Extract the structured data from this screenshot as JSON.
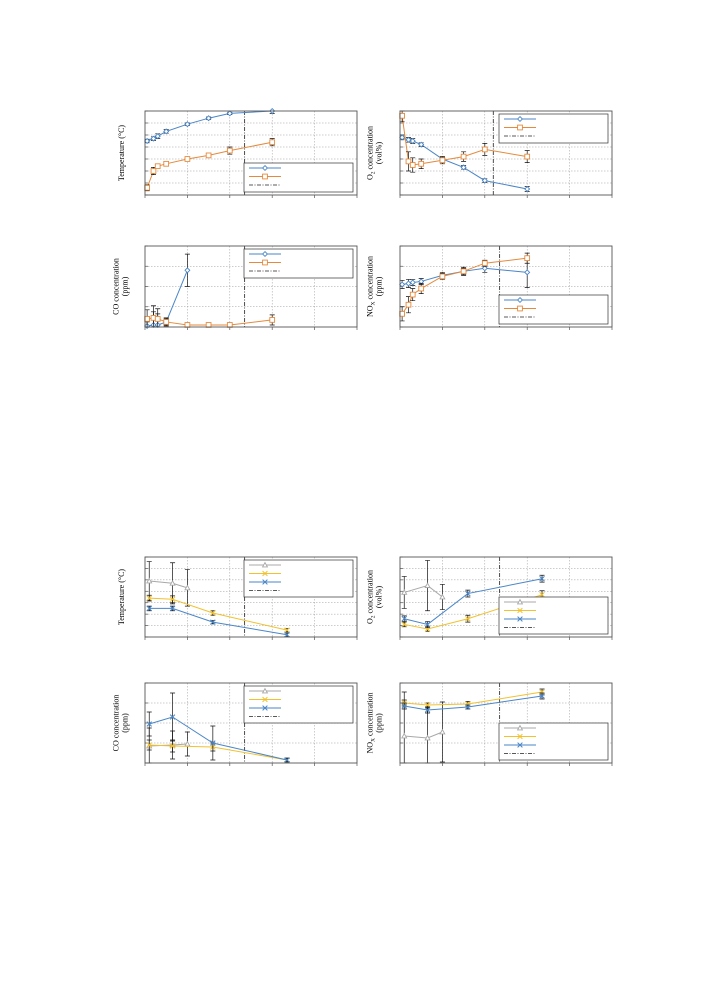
{
  "colors": {
    "blue": "#4a86c8",
    "orange": "#e58a3c",
    "gray": "#a8a8a8",
    "yellow": "#f2c12e",
    "frame": "#555555",
    "grid": "#9a9a9a",
    "errorbar": "#111111"
  },
  "chart_data": [
    {
      "id": "a1",
      "type": "line",
      "ylabel_lines": [
        {
          "text": "Temperature (°C)"
        }
      ],
      "xlim": [
        0,
        10
      ],
      "ylim": [
        0,
        7
      ],
      "xgrid": [
        2,
        4,
        6,
        8
      ],
      "ygrid": [
        1,
        2,
        3,
        4,
        5,
        6
      ],
      "vline": 4.7,
      "legend": "bottom-right",
      "legend_rows": 3,
      "series": [
        {
          "color": "blue",
          "marker": "diamond",
          "x": [
            0.1,
            0.4,
            0.6,
            1.0,
            2.0,
            3.0,
            4.0,
            6.0
          ],
          "y": [
            4.5,
            4.7,
            4.9,
            5.3,
            5.9,
            6.4,
            6.8,
            7.0
          ],
          "err": [
            0.15,
            0.15,
            0.2,
            0.15,
            0.1,
            0.1,
            0.1,
            0.2
          ]
        },
        {
          "color": "orange",
          "marker": "square",
          "x": [
            0.1,
            0.4,
            0.6,
            1.0,
            2.0,
            3.0,
            4.0,
            6.0
          ],
          "y": [
            0.6,
            2.0,
            2.4,
            2.6,
            3.0,
            3.3,
            3.7,
            4.4
          ],
          "err": [
            0.25,
            0.3,
            0.2,
            0.15,
            0.15,
            0.15,
            0.3,
            0.3
          ]
        }
      ]
    },
    {
      "id": "a2",
      "type": "line",
      "ylabel_lines": [
        {
          "text": "O",
          "sub": "2",
          "tail": " concentration"
        },
        {
          "text": "(vol%)"
        }
      ],
      "xlim": [
        0,
        10
      ],
      "ylim": [
        0,
        7
      ],
      "xgrid": [
        2,
        4,
        6,
        8
      ],
      "ygrid": [
        1,
        2,
        3,
        4,
        5,
        6
      ],
      "vline": 4.4,
      "legend": "top-right",
      "legend_rows": 3,
      "series": [
        {
          "color": "blue",
          "marker": "diamond",
          "x": [
            0.1,
            0.4,
            0.6,
            1.0,
            2.0,
            3.0,
            4.0,
            6.0
          ],
          "y": [
            4.8,
            4.6,
            4.5,
            4.2,
            3.0,
            2.3,
            1.2,
            0.5
          ],
          "err": [
            0.2,
            0.2,
            0.2,
            0.15,
            0.15,
            0.15,
            0.15,
            0.2
          ]
        },
        {
          "color": "orange",
          "marker": "square",
          "x": [
            0.1,
            0.4,
            0.6,
            1.0,
            2.0,
            3.0,
            4.0,
            6.0
          ],
          "y": [
            6.6,
            2.8,
            2.5,
            2.6,
            2.9,
            3.2,
            3.8,
            3.2
          ],
          "err": [
            0.5,
            0.8,
            0.6,
            0.4,
            0.3,
            0.4,
            0.5,
            0.5
          ]
        }
      ]
    },
    {
      "id": "a3",
      "type": "line",
      "ylabel_lines": [
        {
          "text": "CO concentration"
        },
        {
          "text": "(ppm)"
        }
      ],
      "xlim": [
        0,
        10
      ],
      "ylim": [
        0,
        8
      ],
      "xgrid": [
        2,
        4,
        6,
        8
      ],
      "ygrid": [
        2,
        4,
        6
      ],
      "vline": 4.7,
      "legend": "top-right",
      "legend_rows": 3,
      "series": [
        {
          "color": "blue",
          "marker": "diamond",
          "x": [
            0.1,
            0.4,
            0.6,
            1.0,
            2.0
          ],
          "y": [
            0.1,
            0.2,
            0.2,
            0.5,
            5.6
          ],
          "err": [
            0.4,
            1.3,
            1.1,
            0.3,
            1.6
          ]
        },
        {
          "color": "orange",
          "marker": "square",
          "x": [
            0.1,
            0.4,
            0.6,
            1.0,
            2.0,
            3.0,
            4.0,
            6.0
          ],
          "y": [
            0.8,
            0.9,
            0.8,
            0.5,
            0.2,
            0.2,
            0.2,
            0.7
          ],
          "err": [
            0.9,
            1.2,
            1.0,
            0.4,
            0.2,
            0.2,
            0.2,
            0.5
          ]
        }
      ]
    },
    {
      "id": "a4",
      "type": "line",
      "ylabel_lines": [
        {
          "text": "NO",
          "sub": "X",
          "tail": " concentration"
        },
        {
          "text": "(ppm)"
        }
      ],
      "xlim": [
        0,
        10
      ],
      "ylim": [
        0,
        8
      ],
      "xgrid": [
        2,
        4,
        6,
        8
      ],
      "ygrid": [
        2,
        4,
        6
      ],
      "vline": 4.7,
      "legend": "bottom-right",
      "legend_rows": 3,
      "series": [
        {
          "color": "blue",
          "marker": "diamond",
          "x": [
            0.1,
            0.4,
            0.6,
            1.0,
            2.0,
            3.0,
            4.0,
            6.0
          ],
          "y": [
            4.2,
            4.3,
            4.4,
            4.5,
            5.1,
            5.5,
            5.8,
            5.4
          ],
          "err": [
            0.4,
            0.4,
            0.3,
            0.3,
            0.3,
            0.4,
            0.4,
            1.5
          ]
        },
        {
          "color": "orange",
          "marker": "square",
          "x": [
            0.1,
            0.4,
            0.6,
            1.0,
            2.0,
            3.0,
            4.0,
            6.0
          ],
          "y": [
            1.3,
            2.2,
            3.2,
            3.8,
            5.0,
            5.5,
            6.3,
            6.8
          ],
          "err": [
            0.7,
            0.8,
            0.6,
            0.5,
            0.3,
            0.3,
            0.3,
            0.5
          ]
        }
      ]
    },
    {
      "id": "b1",
      "type": "line",
      "ylabel_lines": [
        {
          "text": "Temperature (°C)"
        }
      ],
      "xlim": [
        0,
        10
      ],
      "ylim": [
        0,
        7
      ],
      "xgrid": [
        2,
        4,
        6,
        8
      ],
      "ygrid": [
        1,
        2,
        3,
        4,
        5,
        6
      ],
      "vline": 4.7,
      "legend": "top-right",
      "legend_rows": 4,
      "series": [
        {
          "color": "gray",
          "marker": "triangle",
          "x": [
            0.2,
            1.3,
            2.0
          ],
          "y": [
            4.9,
            4.7,
            4.3
          ],
          "err": [
            1.7,
            1.8,
            1.6
          ]
        },
        {
          "color": "yellow",
          "marker": "x",
          "x": [
            0.2,
            1.3,
            3.2,
            6.7
          ],
          "y": [
            3.4,
            3.3,
            2.1,
            0.6
          ],
          "err": [
            0.25,
            0.3,
            0.2,
            0.15
          ]
        },
        {
          "color": "blue",
          "marker": "x",
          "x": [
            0.2,
            1.3,
            3.2,
            6.7
          ],
          "y": [
            2.5,
            2.5,
            1.3,
            0.2
          ],
          "err": [
            0.2,
            0.2,
            0.15,
            0.15
          ]
        }
      ]
    },
    {
      "id": "b2",
      "type": "line",
      "ylabel_lines": [
        {
          "text": "O",
          "sub": "2",
          "tail": " concentration"
        },
        {
          "text": "(vol%)"
        }
      ],
      "xlim": [
        0,
        10
      ],
      "ylim": [
        0,
        7
      ],
      "xgrid": [
        2,
        4,
        6,
        8
      ],
      "ygrid": [
        1,
        2,
        3,
        4,
        5,
        6
      ],
      "vline": 4.7,
      "legend": "bottom-right",
      "legend_rows": 4,
      "series": [
        {
          "color": "gray",
          "marker": "triangle",
          "x": [
            0.2,
            1.3,
            2.0
          ],
          "y": [
            3.9,
            4.5,
            3.5
          ],
          "err": [
            1.4,
            2.2,
            1.1
          ]
        },
        {
          "color": "yellow",
          "marker": "x",
          "x": [
            0.2,
            1.3,
            3.2,
            6.7
          ],
          "y": [
            1.1,
            0.7,
            1.6,
            3.7
          ],
          "err": [
            0.2,
            0.2,
            0.3,
            0.35
          ]
        },
        {
          "color": "blue",
          "marker": "x",
          "x": [
            0.2,
            1.3,
            3.2,
            6.7
          ],
          "y": [
            1.6,
            1.1,
            3.8,
            5.1
          ],
          "err": [
            0.25,
            0.25,
            0.3,
            0.3
          ]
        }
      ]
    },
    {
      "id": "b3",
      "type": "line",
      "ylabel_lines": [
        {
          "text": "CO concentration"
        },
        {
          "text": "(ppm)"
        }
      ],
      "xlim": [
        0,
        10
      ],
      "ylim": [
        0,
        8
      ],
      "xgrid": [
        2,
        4,
        6,
        8
      ],
      "ygrid": [
        2,
        4,
        6
      ],
      "vline": 4.7,
      "legend": "top-right",
      "legend_rows": 4,
      "series": [
        {
          "color": "gray",
          "marker": "triangle",
          "x": [
            0.2,
            1.3,
            2.0
          ],
          "y": [
            1.7,
            1.8,
            1.9
          ],
          "err": [
            1.8,
            1.4,
            1.2
          ]
        },
        {
          "color": "yellow",
          "marker": "x",
          "x": [
            0.2,
            1.3,
            3.2,
            6.7
          ],
          "y": [
            1.8,
            1.7,
            1.6,
            0.3
          ],
          "err": [
            0.5,
            0.6,
            0.4,
            0.15
          ]
        },
        {
          "color": "blue",
          "marker": "x",
          "x": [
            0.2,
            1.3,
            3.2,
            6.7
          ],
          "y": [
            3.9,
            4.6,
            2.0,
            0.3
          ],
          "err": [
            1.2,
            2.4,
            1.7,
            0.2
          ]
        }
      ]
    },
    {
      "id": "b4",
      "type": "line",
      "ylabel_lines": [
        {
          "text": "NO",
          "sub": "X",
          "tail": " concentration"
        },
        {
          "text": "(ppm)"
        }
      ],
      "xlim": [
        0,
        10
      ],
      "ylim": [
        0,
        8
      ],
      "xgrid": [
        2,
        4,
        6,
        8
      ],
      "ygrid": [
        2,
        4,
        6
      ],
      "vline": 4.7,
      "legend": "bottom-right",
      "legend_rows": 4,
      "series": [
        {
          "color": "gray",
          "marker": "triangle",
          "x": [
            0.2,
            1.3,
            2.0
          ],
          "y": [
            2.7,
            2.5,
            3.1
          ],
          "err": [
            4.4,
            3.0,
            3.0
          ]
        },
        {
          "color": "yellow",
          "marker": "x",
          "x": [
            0.2,
            1.3,
            3.2,
            6.7
          ],
          "y": [
            6.0,
            5.8,
            5.9,
            7.1
          ],
          "err": [
            0.3,
            0.2,
            0.25,
            0.3
          ]
        },
        {
          "color": "blue",
          "marker": "x",
          "x": [
            0.2,
            1.3,
            3.2,
            6.7
          ],
          "y": [
            5.7,
            5.3,
            5.6,
            6.7
          ],
          "err": [
            0.3,
            0.3,
            0.2,
            0.3
          ]
        }
      ]
    }
  ]
}
